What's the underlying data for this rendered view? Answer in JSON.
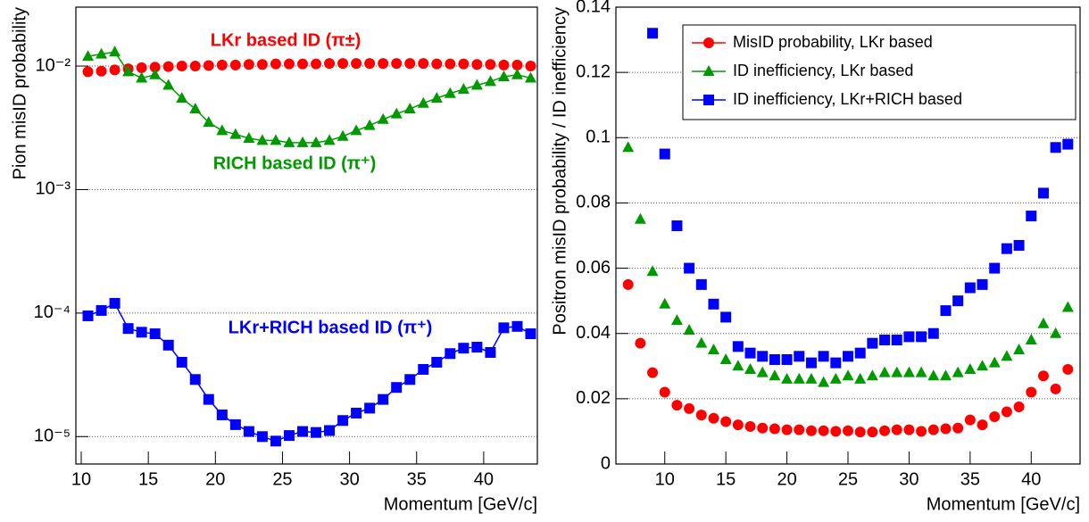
{
  "chart_data": [
    {
      "type": "line",
      "yscale": "log",
      "grid": true,
      "x_label": "Momentum [GeV/c]",
      "y_label": "Pion misID probability",
      "xlim": [
        9.6,
        44
      ],
      "xticks": [
        10,
        15,
        20,
        25,
        30,
        35,
        40
      ],
      "ylim": [
        6e-06,
        0.03
      ],
      "yticks": [
        {
          "value": 1e-05,
          "label": "10⁻⁵"
        },
        {
          "value": 0.0001,
          "label": "10⁻⁴"
        },
        {
          "value": 0.001,
          "label": "10⁻³"
        },
        {
          "value": 0.01,
          "label": "10⁻²"
        }
      ],
      "x": [
        10.5,
        11.5,
        12.5,
        13.5,
        14.5,
        15.5,
        16.5,
        17.5,
        18.5,
        19.5,
        20.5,
        21.5,
        22.5,
        23.5,
        24.5,
        25.5,
        26.5,
        27.5,
        28.5,
        29.5,
        30.5,
        31.5,
        32.5,
        33.5,
        34.5,
        35.5,
        36.5,
        37.5,
        38.5,
        39.5,
        40.5,
        41.5,
        42.5,
        43.5
      ],
      "series": [
        {
          "color": "#ff0000",
          "marker": "circle",
          "connect": false,
          "values": [
            0.009,
            0.0091,
            0.0093,
            0.0095,
            0.0097,
            0.0098,
            0.0099,
            0.01,
            0.01,
            0.0101,
            0.0102,
            0.0102,
            0.0103,
            0.0103,
            0.0104,
            0.0104,
            0.0104,
            0.0104,
            0.0105,
            0.0105,
            0.0105,
            0.0105,
            0.0105,
            0.0105,
            0.0105,
            0.0105,
            0.0104,
            0.0104,
            0.0104,
            0.0103,
            0.0103,
            0.0102,
            0.0102,
            0.01
          ]
        },
        {
          "color": "#009900",
          "marker": "triangle",
          "connect": true,
          "values": [
            0.012,
            0.0125,
            0.013,
            0.009,
            0.008,
            0.0085,
            0.007,
            0.0055,
            0.0045,
            0.0035,
            0.003,
            0.0028,
            0.0026,
            0.0025,
            0.0025,
            0.0024,
            0.0024,
            0.0024,
            0.0025,
            0.0027,
            0.003,
            0.0033,
            0.0037,
            0.0041,
            0.0045,
            0.005,
            0.0055,
            0.006,
            0.0065,
            0.007,
            0.0075,
            0.0082,
            0.0085,
            0.008
          ]
        },
        {
          "color": "#0000ff",
          "marker": "square",
          "connect": true,
          "values": [
            9.5e-05,
            0.000105,
            0.00012,
            7.5e-05,
            7e-05,
            6.8e-05,
            5.5e-05,
            4e-05,
            2.9e-05,
            2e-05,
            1.5e-05,
            1.25e-05,
            1.1e-05,
            1e-05,
            9.2e-06,
            1.02e-05,
            1.1e-05,
            1.08e-05,
            1.12e-05,
            1.35e-05,
            1.55e-05,
            1.7e-05,
            2e-05,
            2.5e-05,
            2.9e-05,
            3.5e-05,
            4e-05,
            4.7e-05,
            5.2e-05,
            5.3e-05,
            4.8e-05,
            7.6e-05,
            7.8e-05,
            6.8e-05
          ]
        }
      ],
      "annotations": [
        {
          "text": "LKr based ID (π±)",
          "color": "#ff0000"
        },
        {
          "text": "RICH based ID (π⁺)",
          "color": "#009900"
        },
        {
          "text": "LKr+RICH based ID (π⁺)",
          "color": "#0000ff"
        }
      ]
    },
    {
      "type": "scatter",
      "grid": true,
      "legend": "top-right",
      "x_label": "Momentum [GeV/c]",
      "y_label": "Positron misID probability / ID inefficiency",
      "xlim": [
        6,
        44
      ],
      "xticks": [
        10,
        15,
        20,
        25,
        30,
        35,
        40
      ],
      "ylim": [
        0,
        0.14
      ],
      "yticks": [
        0,
        0.02,
        0.04,
        0.06,
        0.08,
        0.1,
        0.12,
        0.14
      ],
      "x": [
        7,
        8,
        9,
        10,
        11,
        12,
        13,
        14,
        15,
        16,
        17,
        18,
        19,
        20,
        21,
        22,
        23,
        24,
        25,
        26,
        27,
        28,
        29,
        30,
        31,
        32,
        33,
        34,
        35,
        36,
        37,
        38,
        39,
        40,
        41,
        42,
        43
      ],
      "series": [
        {
          "name": "MisID probability, LKr based",
          "color": "#ff0000",
          "marker": "circle",
          "values": [
            0.055,
            0.037,
            0.028,
            0.022,
            0.018,
            0.017,
            0.015,
            0.014,
            0.013,
            0.012,
            0.0115,
            0.011,
            0.0108,
            0.0105,
            0.0105,
            0.0102,
            0.0102,
            0.01,
            0.0102,
            0.0098,
            0.0098,
            0.0102,
            0.0105,
            0.0105,
            0.01,
            0.0105,
            0.0108,
            0.011,
            0.0135,
            0.012,
            0.0145,
            0.016,
            0.0175,
            0.022,
            0.027,
            0.023,
            0.029
          ]
        },
        {
          "name": "ID inefficiency, LKr based",
          "color": "#009900",
          "marker": "triangle",
          "values": [
            0.097,
            0.075,
            0.059,
            0.049,
            0.044,
            0.041,
            0.037,
            0.035,
            0.032,
            0.03,
            0.029,
            0.028,
            0.027,
            0.026,
            0.026,
            0.026,
            0.025,
            0.026,
            0.027,
            0.026,
            0.027,
            0.028,
            0.028,
            0.028,
            0.028,
            0.027,
            0.027,
            0.028,
            0.029,
            0.03,
            0.031,
            0.033,
            0.035,
            0.038,
            0.043,
            0.04,
            0.048
          ]
        },
        {
          "name": "ID inefficiency, LKr+RICH based",
          "color": "#0000ff",
          "marker": "square",
          "values": [
            null,
            null,
            0.132,
            0.095,
            0.073,
            0.06,
            0.055,
            0.049,
            0.045,
            0.036,
            0.034,
            0.033,
            0.032,
            0.032,
            0.033,
            0.031,
            0.033,
            0.031,
            0.033,
            0.034,
            0.037,
            0.038,
            0.038,
            0.039,
            0.039,
            0.04,
            0.047,
            0.05,
            0.054,
            0.055,
            0.06,
            0.066,
            0.067,
            0.076,
            0.083,
            0.097,
            0.098
          ]
        }
      ]
    }
  ]
}
